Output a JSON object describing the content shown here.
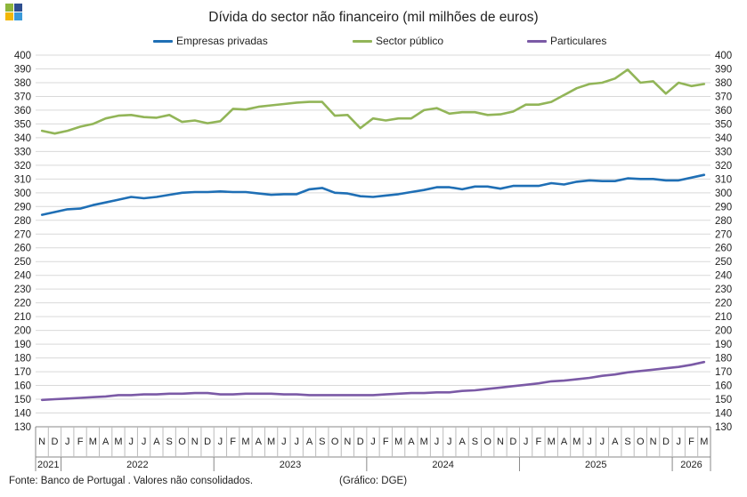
{
  "header": {
    "logo_colors": [
      "#8db63c",
      "#2e4e8f",
      "#f2b705",
      "#3a9ad9"
    ]
  },
  "chart_data": {
    "type": "line",
    "title": "Dívida do sector não financeiro (mil milhões de euros)",
    "xlabel": "",
    "ylabel": "",
    "ylim": [
      130,
      400
    ],
    "ytick_step": 10,
    "grid": "horizontal",
    "legend_position": "top",
    "categories": [
      "N",
      "D",
      "J",
      "F",
      "M",
      "A",
      "M",
      "J",
      "J",
      "A",
      "S",
      "O",
      "N",
      "D",
      "J",
      "F",
      "M",
      "A",
      "M",
      "J",
      "J",
      "A",
      "S",
      "O",
      "N",
      "D",
      "J",
      "F",
      "M",
      "A",
      "M",
      "J",
      "J",
      "A",
      "S",
      "O",
      "N",
      "D",
      "J",
      "F",
      "M",
      "A",
      "M",
      "J",
      "J",
      "A",
      "S",
      "O",
      "N",
      "D",
      "J",
      "F",
      "M"
    ],
    "year_labels": [
      "2021",
      "2022",
      "2023",
      "2024",
      "2025",
      "2026"
    ],
    "series": [
      {
        "name": "Empresas privadas",
        "color": "#1f6fb5",
        "values": [
          284,
          286,
          288,
          288.5,
          291,
          293,
          295,
          297,
          296,
          297,
          298.5,
          300,
          300.5,
          300.5,
          301,
          300.5,
          300.5,
          299.5,
          298.5,
          299,
          299,
          302.5,
          303.5,
          300,
          299.5,
          297.5,
          297,
          298,
          299,
          300.5,
          302,
          304,
          304,
          302.5,
          304.5,
          304.5,
          303,
          305,
          305,
          305,
          307,
          306,
          308,
          309,
          308.5,
          308.5,
          310.5,
          310,
          310,
          309,
          309,
          311,
          313
        ]
      },
      {
        "name": "Sector público",
        "color": "#92b558",
        "values": [
          345,
          343,
          345,
          348,
          350,
          354,
          356,
          356.5,
          355,
          354.5,
          356.5,
          351.5,
          352.5,
          350.5,
          352,
          361,
          360.5,
          362.5,
          363.5,
          364.5,
          365.5,
          366,
          366,
          356,
          356.5,
          347,
          354,
          352.5,
          354,
          354,
          360,
          361.5,
          357.5,
          358.5,
          358.5,
          356.5,
          357,
          359,
          364,
          364,
          366,
          371,
          376,
          379,
          380,
          383,
          389.5,
          380,
          381,
          372,
          380,
          377.5,
          379
        ]
      },
      {
        "name": "Particulares",
        "color": "#7b5aa6",
        "values": [
          149.5,
          150,
          150.5,
          151,
          151.5,
          152,
          153,
          153,
          153.5,
          153.5,
          154,
          154,
          154.5,
          154.5,
          153.5,
          153.5,
          154,
          154,
          154,
          153.5,
          153.5,
          153,
          153,
          153,
          153,
          153,
          153,
          153.5,
          154,
          154.5,
          154.5,
          155,
          155,
          156,
          156.5,
          157.5,
          158.5,
          159.5,
          160.5,
          161.5,
          163,
          163.5,
          164.5,
          165.5,
          167,
          168,
          169.5,
          170.5,
          171.5,
          172.5,
          173.5,
          175,
          177
        ]
      }
    ]
  },
  "footer": {
    "source": "Fonte: Banco de Portugal . Valores não consolidados.",
    "credit": "(Gráfico: DGE)"
  }
}
